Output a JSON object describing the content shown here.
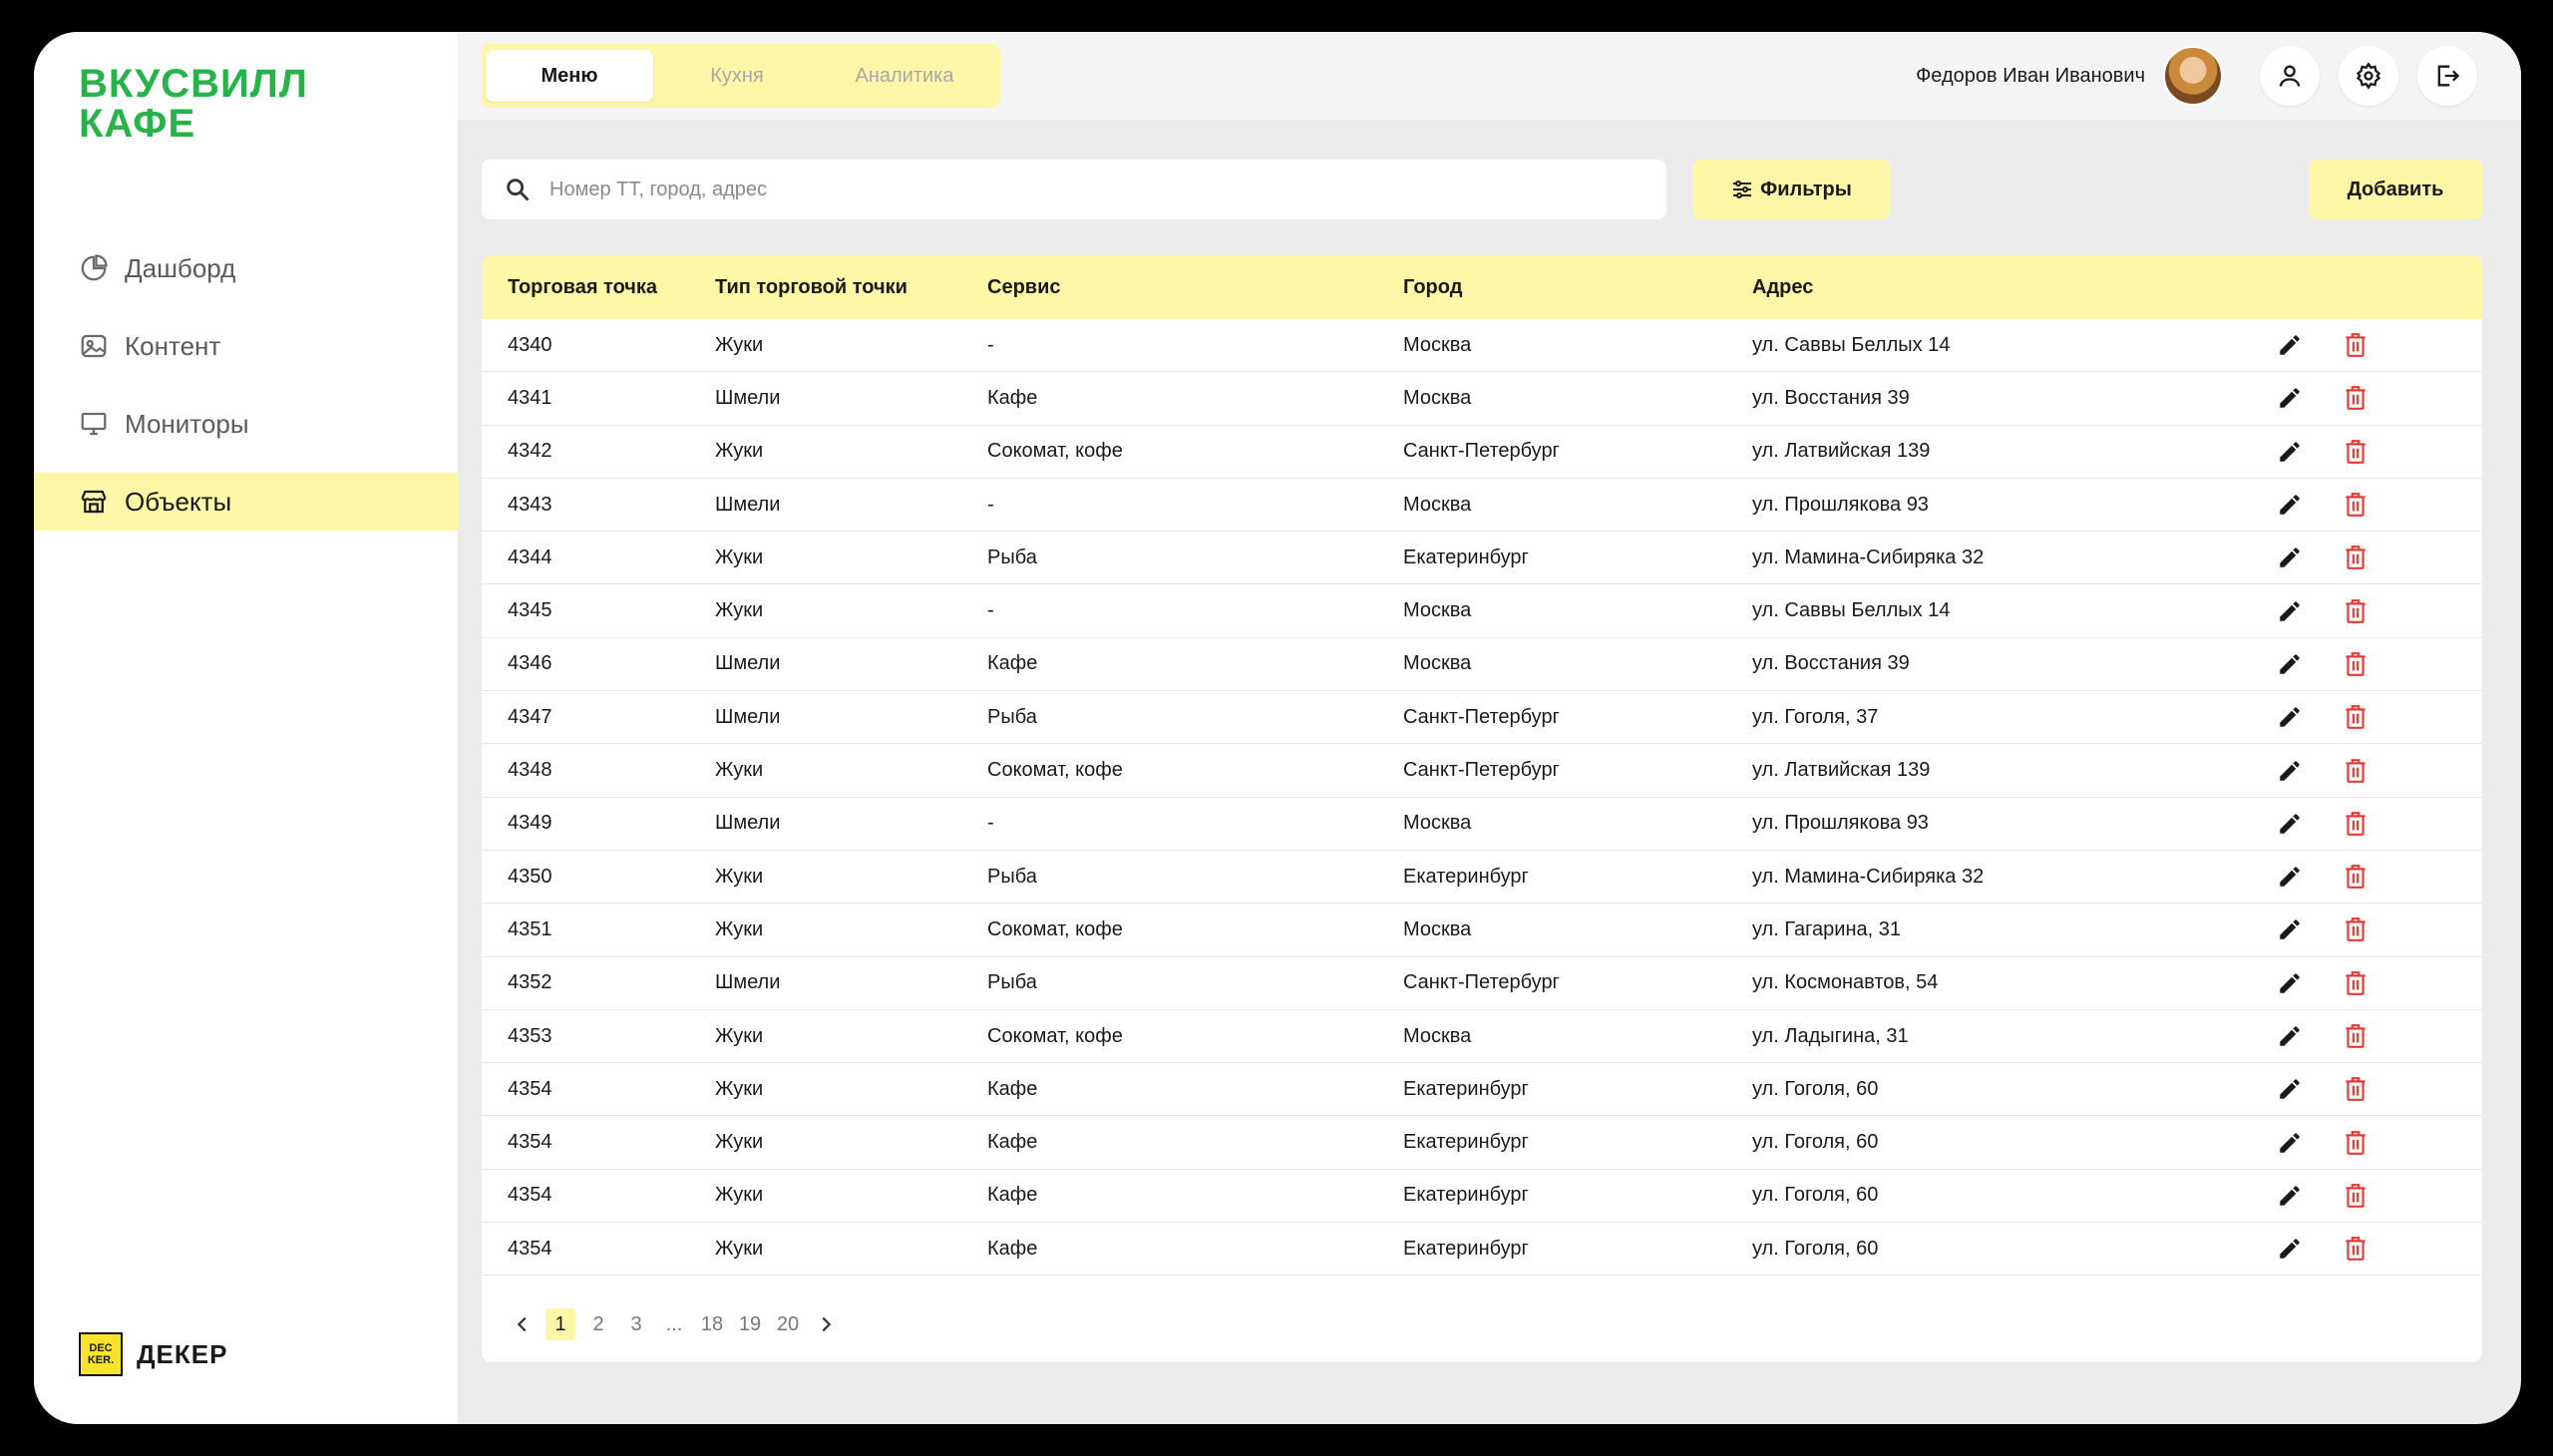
{
  "logo": {
    "line1": "ВКУСВИЛЛ",
    "line2": "КАФЕ"
  },
  "sidebar": {
    "items": [
      {
        "label": "Дашборд",
        "icon": "chart-pie-icon",
        "active": false
      },
      {
        "label": "Контент",
        "icon": "image-icon",
        "active": false
      },
      {
        "label": "Мониторы",
        "icon": "monitor-icon",
        "active": false
      },
      {
        "label": "Объекты",
        "icon": "store-icon",
        "active": true
      }
    ]
  },
  "brand": {
    "mark_top": "DEC",
    "mark_bottom": "KER.",
    "name": "ДЕКЕР"
  },
  "header": {
    "tabs": [
      {
        "label": "Меню",
        "active": true
      },
      {
        "label": "Кухня",
        "active": false
      },
      {
        "label": "Аналитика",
        "active": false
      }
    ],
    "user_name": "Федоров Иван Иванович"
  },
  "search": {
    "placeholder": "Номер ТТ, город, адрес",
    "value": ""
  },
  "toolbar": {
    "filters_label": "Фильтры",
    "add_label": "Добавить"
  },
  "table": {
    "columns": [
      "Торговая точка",
      "Тип торговой точки",
      "Сервис",
      "Город",
      "Адрес"
    ],
    "rows": [
      [
        "4340",
        "Жуки",
        "-",
        "Москва",
        "ул. Саввы Беллых 14"
      ],
      [
        "4341",
        "Шмели",
        "Кафе",
        "Москва",
        "ул. Восстания 39"
      ],
      [
        "4342",
        "Жуки",
        "Сокомат, кофе",
        "Санкт-Петербург",
        "ул. Латвийская 139"
      ],
      [
        "4343",
        "Шмели",
        "-",
        "Москва",
        "ул. Прошлякова 93"
      ],
      [
        "4344",
        "Жуки",
        "Рыба",
        "Екатеринбург",
        "ул. Мамина-Сибиряка 32"
      ],
      [
        "4345",
        "Жуки",
        "-",
        "Москва",
        "ул. Саввы Беллых 14"
      ],
      [
        "4346",
        "Шмели",
        "Кафе",
        "Москва",
        "ул. Восстания 39"
      ],
      [
        "4347",
        "Шмели",
        "Рыба",
        "Санкт-Петербург",
        "ул. Гоголя, 37"
      ],
      [
        "4348",
        "Жуки",
        "Сокомат, кофе",
        "Санкт-Петербург",
        "ул. Латвийская 139"
      ],
      [
        "4349",
        "Шмели",
        "-",
        "Москва",
        "ул. Прошлякова 93"
      ],
      [
        "4350",
        "Жуки",
        "Рыба",
        "Екатеринбург",
        "ул. Мамина-Сибиряка 32"
      ],
      [
        "4351",
        "Жуки",
        "Сокомат, кофе",
        "Москва",
        "ул. Гагарина, 31"
      ],
      [
        "4352",
        "Шмели",
        "Рыба",
        "Санкт-Петербург",
        "ул. Космонавтов, 54"
      ],
      [
        "4353",
        "Жуки",
        "Сокомат, кофе",
        "Москва",
        "ул. Ладыгина, 31"
      ],
      [
        "4354",
        "Жуки",
        "Кафе",
        "Екатеринбург",
        "ул. Гоголя, 60"
      ],
      [
        "4354",
        "Жуки",
        "Кафе",
        "Екатеринбург",
        "ул. Гоголя, 60"
      ],
      [
        "4354",
        "Жуки",
        "Кафе",
        "Екатеринбург",
        "ул. Гоголя, 60"
      ],
      [
        "4354",
        "Жуки",
        "Кафе",
        "Екатеринбург",
        "ул. Гоголя, 60"
      ]
    ]
  },
  "pagination": {
    "pages": [
      "1",
      "2",
      "3",
      "...",
      "18",
      "19",
      "20"
    ],
    "current": "1"
  },
  "colors": {
    "accent_green": "#27b34a",
    "accent_yellow": "#fff7a8",
    "delete_red": "#e53935",
    "background": "#ebebeb"
  }
}
